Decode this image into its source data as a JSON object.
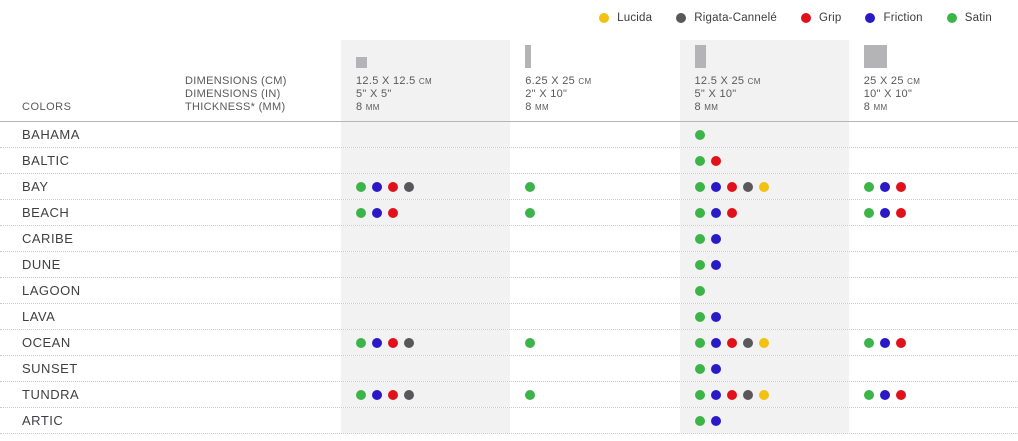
{
  "legend": {
    "items": [
      {
        "key": "lucida",
        "label": "Lucida",
        "color": "#F2C112"
      },
      {
        "key": "rigata",
        "label": "Rigata-Cannelé",
        "color": "#58585A"
      },
      {
        "key": "grip",
        "label": "Grip",
        "color": "#E01119"
      },
      {
        "key": "friction",
        "label": "Friction",
        "color": "#2A1AC6"
      },
      {
        "key": "satin",
        "label": "Satin",
        "color": "#3CB44A"
      }
    ]
  },
  "finish_colors": {
    "satin": "#3CB44A",
    "friction": "#2A1AC6",
    "grip": "#E01119",
    "rigata": "#58585A",
    "lucida": "#F2C112"
  },
  "header": {
    "colors_label": "COLORS",
    "dimension_labels": [
      "DIMENSIONS (CM)",
      "DIMENSIONS (IN)",
      "THICKNESS* (MM)"
    ],
    "size_columns": [
      {
        "cm": "12.5 X 12.5 cm",
        "in": "5\" X 5\"",
        "mm": "8 mm",
        "icon": "tile-12x12-icon",
        "shaded": true
      },
      {
        "cm": "6.25 X 25 cm",
        "in": "2\" X 10\"",
        "mm": "8 mm",
        "icon": "tile-6x25-icon",
        "shaded": false
      },
      {
        "cm": "12.5 X 25 cm",
        "in": "5\" X 10\"",
        "mm": "8 mm",
        "icon": "tile-12x25-icon",
        "shaded": true
      },
      {
        "cm": "25 X 25 cm",
        "in": "10\" X 10\"",
        "mm": "8 mm",
        "icon": "tile-25x25-icon",
        "shaded": false
      }
    ]
  },
  "rows": [
    {
      "color": "BAHAMA",
      "cells": [
        [],
        [],
        [
          "satin"
        ],
        []
      ]
    },
    {
      "color": "BALTIC",
      "cells": [
        [],
        [],
        [
          "satin",
          "grip"
        ],
        []
      ]
    },
    {
      "color": "BAY",
      "cells": [
        [
          "satin",
          "friction",
          "grip",
          "rigata"
        ],
        [
          "satin"
        ],
        [
          "satin",
          "friction",
          "grip",
          "rigata",
          "lucida"
        ],
        [
          "satin",
          "friction",
          "grip"
        ]
      ]
    },
    {
      "color": "BEACH",
      "cells": [
        [
          "satin",
          "friction",
          "grip"
        ],
        [
          "satin"
        ],
        [
          "satin",
          "friction",
          "grip"
        ],
        [
          "satin",
          "friction",
          "grip"
        ]
      ]
    },
    {
      "color": "CARIBE",
      "cells": [
        [],
        [],
        [
          "satin",
          "friction"
        ],
        []
      ]
    },
    {
      "color": "DUNE",
      "cells": [
        [],
        [],
        [
          "satin",
          "friction"
        ],
        []
      ]
    },
    {
      "color": "LAGOON",
      "cells": [
        [],
        [],
        [
          "satin"
        ],
        []
      ]
    },
    {
      "color": "LAVA",
      "cells": [
        [],
        [],
        [
          "satin",
          "friction"
        ],
        []
      ]
    },
    {
      "color": "OCEAN",
      "cells": [
        [
          "satin",
          "friction",
          "grip",
          "rigata"
        ],
        [
          "satin"
        ],
        [
          "satin",
          "friction",
          "grip",
          "rigata",
          "lucida"
        ],
        [
          "satin",
          "friction",
          "grip"
        ]
      ]
    },
    {
      "color": "SUNSET",
      "cells": [
        [],
        [],
        [
          "satin",
          "friction"
        ],
        []
      ]
    },
    {
      "color": "TUNDRA",
      "cells": [
        [
          "satin",
          "friction",
          "grip",
          "rigata"
        ],
        [
          "satin"
        ],
        [
          "satin",
          "friction",
          "grip",
          "rigata",
          "lucida"
        ],
        [
          "satin",
          "friction",
          "grip"
        ]
      ]
    },
    {
      "color": "ARTIC",
      "cells": [
        [],
        [],
        [
          "satin",
          "friction"
        ],
        []
      ]
    }
  ]
}
